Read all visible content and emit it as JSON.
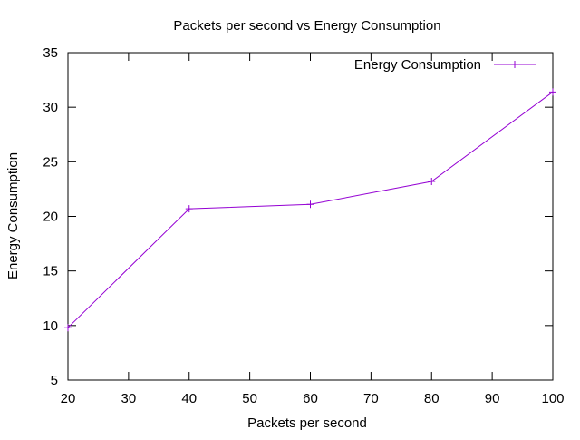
{
  "chart_data": {
    "type": "line",
    "title": "Packets per second vs Energy Consumption",
    "xlabel": "Packets per second",
    "ylabel": "Energy Consumption",
    "x": [
      20,
      40,
      60,
      80,
      100
    ],
    "series": [
      {
        "name": "Energy Consumption",
        "values": [
          9.8,
          20.7,
          21.1,
          23.2,
          31.4
        ],
        "color": "#9400d3",
        "marker": "plus"
      }
    ],
    "xlim": [
      20,
      100
    ],
    "ylim": [
      5,
      35
    ],
    "xticks": [
      20,
      30,
      40,
      50,
      60,
      70,
      80,
      90,
      100
    ],
    "yticks": [
      5,
      10,
      15,
      20,
      25,
      30,
      35
    ],
    "grid": false,
    "legend_position": "top-right"
  }
}
